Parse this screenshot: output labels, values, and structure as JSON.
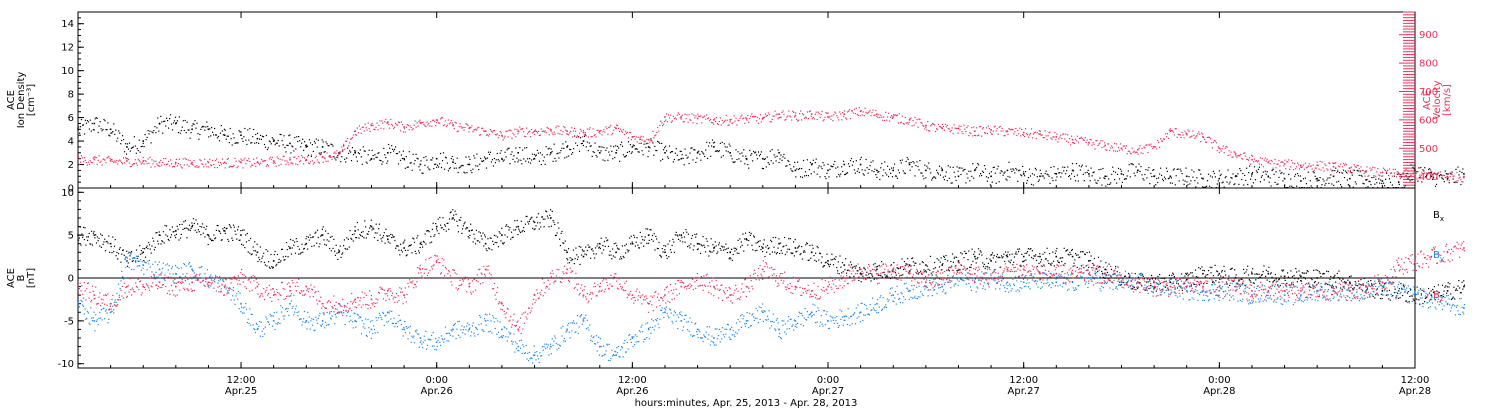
{
  "chart_data": [
    {
      "type": "scatter",
      "panel": "density-velocity",
      "xlabel": "hours:minutes, Apr. 25, 2013 - Apr. 28, 2013",
      "xlim": [
        "2013-04-25T02:00",
        "2013-04-28T12:00"
      ],
      "x_ticks": [
        {
          "time": "2013-04-25T12:00",
          "label1": "12:00",
          "label2": "Apr.25"
        },
        {
          "time": "2013-04-26T00:00",
          "label1": "0:00",
          "label2": "Apr.26"
        },
        {
          "time": "2013-04-26T12:00",
          "label1": "12:00",
          "label2": "Apr.26"
        },
        {
          "time": "2013-04-27T00:00",
          "label1": "0:00",
          "label2": "Apr.27"
        },
        {
          "time": "2013-04-27T12:00",
          "label1": "12:00",
          "label2": "Apr.27"
        },
        {
          "time": "2013-04-28T00:00",
          "label1": "0:00",
          "label2": "Apr.28"
        },
        {
          "time": "2013-04-28T12:00",
          "label1": "12:00",
          "label2": "Apr.28"
        }
      ],
      "y_left": {
        "label_lines": [
          "ACE",
          "Ion Density",
          "[cm⁻³]"
        ],
        "ylim": [
          0,
          15
        ],
        "ticks": [
          0,
          2,
          4,
          6,
          8,
          10,
          12,
          14
        ]
      },
      "y_right": {
        "label_lines": [
          "ACE",
          "Velocity",
          "[km/s]"
        ],
        "ylim": [
          360,
          980
        ],
        "ticks": [
          400,
          500,
          600,
          700,
          800,
          900
        ]
      },
      "series": [
        {
          "name": "Ion Density",
          "axis": "left",
          "color": "#000000",
          "x_hours_since_2013-04-25T00:00": [
            2,
            3,
            4,
            5,
            6,
            7,
            8,
            9,
            10,
            11,
            12,
            13,
            14,
            15,
            16,
            17,
            18,
            19,
            20,
            21,
            22,
            23,
            24,
            25,
            26,
            27,
            28,
            29,
            30,
            31,
            32,
            33,
            34,
            35,
            36,
            37,
            38,
            39,
            40,
            41,
            42,
            43,
            44,
            45,
            46,
            47,
            48,
            49,
            50,
            51,
            52,
            53,
            54,
            55,
            56,
            57,
            58,
            59,
            60,
            61,
            62,
            63,
            64,
            65,
            66,
            67,
            68,
            69,
            70,
            71,
            72,
            73,
            74,
            75,
            76,
            77,
            78,
            79,
            80,
            81,
            82,
            83,
            84,
            85,
            86,
            87
          ],
          "values": [
            5,
            5.5,
            5,
            3.5,
            4,
            5.5,
            5.5,
            5,
            5,
            4.5,
            4.5,
            4.2,
            4,
            3.8,
            3.5,
            3.5,
            3,
            3,
            2.5,
            3,
            2.5,
            2,
            2.5,
            2.2,
            2,
            2.5,
            2.5,
            3,
            2.5,
            3,
            3.5,
            4,
            3,
            3,
            3.5,
            3.5,
            3,
            2.5,
            3,
            3.5,
            3,
            2.5,
            2.5,
            3,
            1.5,
            2,
            1.5,
            2,
            2,
            1.5,
            1.5,
            2,
            1.5,
            1.5,
            1,
            1.5,
            1,
            1.5,
            1.2,
            1,
            1.2,
            1.5,
            1.2,
            1,
            1.2,
            1.5,
            1,
            1,
            1,
            0.8,
            0.8,
            1,
            1.2,
            1,
            0.8,
            0.6,
            0.8,
            1,
            0.8,
            0.7,
            0.6,
            0.5,
            1.5,
            1,
            0.8,
            1.2
          ]
        },
        {
          "name": "Velocity",
          "axis": "right",
          "color": "#e8325a",
          "x_hours_since_2013-04-25T00:00": [
            2,
            3,
            4,
            5,
            6,
            7,
            8,
            9,
            10,
            11,
            12,
            13,
            14,
            15,
            16,
            17,
            18,
            19,
            20,
            21,
            22,
            23,
            24,
            25,
            26,
            27,
            28,
            29,
            30,
            31,
            32,
            33,
            34,
            35,
            36,
            37,
            38,
            39,
            40,
            41,
            42,
            43,
            44,
            45,
            46,
            47,
            48,
            49,
            50,
            51,
            52,
            53,
            54,
            55,
            56,
            57,
            58,
            59,
            60,
            61,
            62,
            63,
            64,
            65,
            66,
            67,
            68,
            69,
            70,
            71,
            72,
            73,
            74,
            75,
            76,
            77,
            78,
            79,
            80,
            81,
            82,
            83,
            84,
            85,
            86,
            87
          ],
          "values": [
            460,
            460,
            455,
            455,
            455,
            450,
            450,
            450,
            450,
            450,
            450,
            450,
            455,
            460,
            460,
            470,
            480,
            560,
            580,
            590,
            575,
            590,
            600,
            580,
            570,
            560,
            545,
            560,
            560,
            565,
            560,
            555,
            560,
            570,
            540,
            530,
            610,
            610,
            605,
            600,
            600,
            605,
            605,
            620,
            615,
            620,
            610,
            620,
            630,
            620,
            610,
            600,
            580,
            570,
            570,
            560,
            565,
            560,
            555,
            550,
            540,
            530,
            520,
            510,
            500,
            495,
            505,
            560,
            550,
            540,
            500,
            480,
            460,
            450,
            445,
            440,
            440,
            435,
            430,
            420,
            415,
            410,
            410,
            410,
            400,
            400
          ]
        }
      ]
    },
    {
      "type": "scatter",
      "panel": "magnetic-field",
      "y_left": {
        "label_lines": [
          "ACE",
          "B",
          "[nT]"
        ],
        "ylim": [
          -10.5,
          10.5
        ],
        "ticks": [
          -10,
          -5,
          0,
          5,
          10
        ]
      },
      "reference_line": 0,
      "series": [
        {
          "name": "Bx",
          "label_main": "B",
          "label_sub": "x",
          "color": "#000000",
          "x_hours_since_2013-04-25T00:00": [
            2,
            3,
            4,
            5,
            6,
            7,
            8,
            9,
            10,
            11,
            12,
            13,
            14,
            15,
            16,
            17,
            18,
            19,
            20,
            21,
            22,
            23,
            24,
            25,
            26,
            27,
            28,
            29,
            30,
            31,
            32,
            33,
            34,
            35,
            36,
            37,
            38,
            39,
            40,
            41,
            42,
            43,
            44,
            45,
            46,
            47,
            48,
            49,
            50,
            51,
            52,
            53,
            54,
            55,
            56,
            57,
            58,
            59,
            60,
            61,
            62,
            63,
            64,
            65,
            66,
            67,
            68,
            69,
            70,
            71,
            72,
            73,
            74,
            75,
            76,
            77,
            78,
            79,
            80,
            81,
            82,
            83,
            84,
            85,
            86,
            87
          ],
          "values": [
            5,
            5,
            4,
            2,
            3,
            5,
            5.5,
            6,
            5,
            5.5,
            5,
            3,
            2,
            3.5,
            4,
            5,
            3,
            5.5,
            6,
            4.5,
            3.5,
            4,
            6,
            7,
            5.5,
            4,
            5,
            6,
            6.5,
            7,
            3,
            2.5,
            4,
            3,
            4,
            5,
            3,
            5,
            4,
            3.5,
            3,
            4.5,
            3.5,
            4,
            3.5,
            3,
            2,
            1.5,
            0.5,
            1,
            1,
            1.5,
            1.5,
            1.5,
            2,
            2.5,
            2,
            2.5,
            2.5,
            2.5,
            2.5,
            2.5,
            2,
            1,
            0,
            -0.5,
            -0.5,
            -0.5,
            -0.2,
            0.5,
            0.5,
            0,
            0.5,
            0.5,
            0.2,
            0.2,
            0,
            0,
            -0.5,
            -1,
            -1.5,
            -1.5,
            -2,
            -2,
            -1.5,
            -1
          ]
        },
        {
          "name": "By",
          "label_main": "B",
          "label_sub": "y",
          "color": "#1f88e5",
          "x_hours_since_2013-04-25T00:00": [
            2,
            3,
            4,
            5,
            6,
            7,
            8,
            9,
            10,
            11,
            12,
            13,
            14,
            15,
            16,
            17,
            18,
            19,
            20,
            21,
            22,
            23,
            24,
            25,
            26,
            27,
            28,
            29,
            30,
            31,
            32,
            33,
            34,
            35,
            36,
            37,
            38,
            39,
            40,
            41,
            42,
            43,
            44,
            45,
            46,
            47,
            48,
            49,
            50,
            51,
            52,
            53,
            54,
            55,
            56,
            57,
            58,
            59,
            60,
            61,
            62,
            63,
            64,
            65,
            66,
            67,
            68,
            69,
            70,
            71,
            72,
            73,
            74,
            75,
            76,
            77,
            78,
            79,
            80,
            81,
            82,
            83,
            84,
            85,
            86,
            87
          ],
          "values": [
            -3,
            -5,
            -4,
            2,
            1.5,
            1,
            0.5,
            1,
            0,
            -1,
            -3,
            -6,
            -5,
            -3,
            -5,
            -5,
            -4,
            -5,
            -6,
            -4,
            -6,
            -7,
            -7.5,
            -6,
            -6,
            -5,
            -6,
            -8,
            -9,
            -8,
            -6,
            -5,
            -8,
            -9,
            -7,
            -6,
            -4,
            -5,
            -6,
            -7,
            -6,
            -5,
            -4,
            -6,
            -5,
            -4,
            -5,
            -4.5,
            -4,
            -3,
            -2,
            -1.5,
            -1,
            -1,
            0,
            -0.5,
            0,
            -0.5,
            -0.5,
            -0.2,
            -0.5,
            -0.5,
            0,
            -0.5,
            -0.5,
            -0.5,
            -1,
            -1,
            -1.5,
            -1.5,
            -1.5,
            -1.5,
            -2,
            -1.5,
            -2,
            -2,
            -1.5,
            -1.5,
            -1.5,
            -1.5,
            -1,
            -1.5,
            -2,
            -2.5,
            -3,
            -3.5
          ]
        },
        {
          "name": "Bz",
          "label_main": "B",
          "label_sub": "z",
          "color": "#e8325a",
          "x_hours_since_2013-04-25T00:00": [
            2,
            3,
            4,
            5,
            6,
            7,
            8,
            9,
            10,
            11,
            12,
            13,
            14,
            15,
            16,
            17,
            18,
            19,
            20,
            21,
            22,
            23,
            24,
            25,
            26,
            27,
            28,
            29,
            30,
            31,
            32,
            33,
            34,
            35,
            36,
            37,
            38,
            39,
            40,
            41,
            42,
            43,
            44,
            45,
            46,
            47,
            48,
            49,
            50,
            51,
            52,
            53,
            54,
            55,
            56,
            57,
            58,
            59,
            60,
            61,
            62,
            63,
            64,
            65,
            66,
            67,
            68,
            69,
            70,
            71,
            72,
            73,
            74,
            75,
            76,
            77,
            78,
            79,
            80,
            81,
            82,
            83,
            84,
            85,
            86,
            87
          ],
          "values": [
            -1,
            -2,
            -3,
            -1,
            -1,
            -0.5,
            -1,
            -0.5,
            -0.5,
            -1,
            0,
            -1,
            -2,
            -1,
            -1,
            -3,
            -3,
            -2.5,
            -2.5,
            -1.5,
            -2,
            1,
            2,
            0,
            -1,
            1,
            -3,
            -6,
            -2,
            0,
            1,
            -2,
            -1,
            0,
            -2,
            -3,
            -2,
            -1,
            0,
            -1,
            -2,
            -1,
            1,
            0,
            -1,
            -1.5,
            -1,
            0,
            1,
            0.5,
            1,
            0.5,
            -0.5,
            0,
            1,
            0.5,
            0,
            1,
            1,
            0.5,
            0.5,
            0.5,
            0.5,
            0.5,
            0,
            -0.5,
            -1,
            -1,
            -1,
            -1,
            -1,
            -1,
            -1.5,
            -1.5,
            -1.5,
            -1.5,
            -1.5,
            -1.5,
            -1.5,
            -1,
            -0.5,
            1.5,
            2,
            2.5,
            3,
            3.5
          ]
        }
      ]
    }
  ]
}
